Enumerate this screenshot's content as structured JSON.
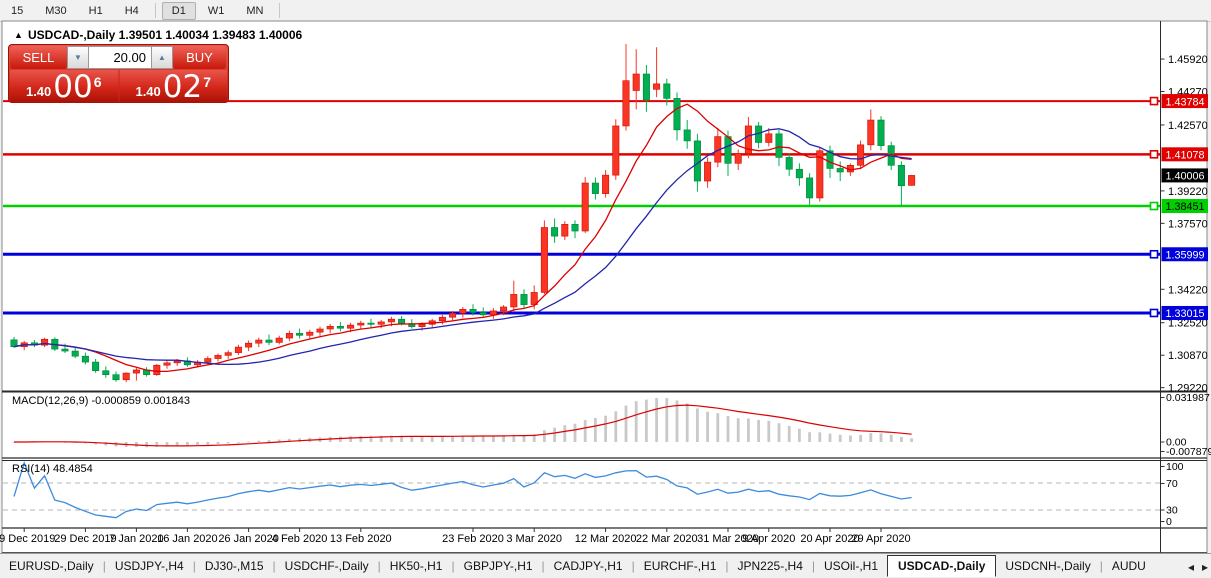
{
  "toolbar": {
    "timeframes": [
      "15",
      "M30",
      "H1",
      "H4",
      "D1",
      "W1",
      "MN"
    ],
    "active": "D1"
  },
  "chart": {
    "title_marker": "▲",
    "title": "USDCAD-,Daily  1.39501 1.40034 1.39483 1.40006"
  },
  "trade": {
    "sell_label": "SELL",
    "buy_label": "BUY",
    "volume": "20.00",
    "spin_down": "▼",
    "spin_up": "▲",
    "sell_price": {
      "prefix": "1.40",
      "big": "00",
      "sup": "6"
    },
    "buy_price": {
      "prefix": "1.40",
      "big": "02",
      "sup": "7"
    }
  },
  "chart_data": {
    "type": "candlestick",
    "symbol": "USDCAD-",
    "timeframe": "Daily",
    "price_axis": {
      "max": 1.4765,
      "min": 1.2905,
      "ticks": [
        1.4592,
        1.4427,
        1.4257,
        1.3922,
        1.3757,
        1.3422,
        1.3252,
        1.3087,
        1.2922
      ]
    },
    "x_axis": {
      "labels": [
        {
          "i": 1,
          "t": "19 Dec 2019"
        },
        {
          "i": 7,
          "t": "29 Dec 2019"
        },
        {
          "i": 12,
          "t": "7 Jan 2020"
        },
        {
          "i": 17,
          "t": "16 Jan 2020"
        },
        {
          "i": 23,
          "t": "26 Jan 2020"
        },
        {
          "i": 28,
          "t": "4 Feb 2020"
        },
        {
          "i": 34,
          "t": "13 Feb 2020"
        },
        {
          "i": 45,
          "t": "23 Feb 2020"
        },
        {
          "i": 51,
          "t": "3 Mar 2020"
        },
        {
          "i": 58,
          "t": "12 Mar 2020"
        },
        {
          "i": 64,
          "t": "22 Mar 2020"
        },
        {
          "i": 70,
          "t": "31 Mar 2020"
        },
        {
          "i": 74,
          "t": "9 Apr 2020"
        },
        {
          "i": 80,
          "t": "20 Apr 2020"
        },
        {
          "i": 85,
          "t": "29 Apr 2020"
        }
      ]
    },
    "candles": [
      [
        1.3165,
        1.318,
        1.3125,
        1.313
      ],
      [
        1.313,
        1.316,
        1.3112,
        1.315
      ],
      [
        1.315,
        1.3164,
        1.3128,
        1.3138
      ],
      [
        1.3138,
        1.3176,
        1.3128,
        1.3168
      ],
      [
        1.3168,
        1.3178,
        1.3108,
        1.3118
      ],
      [
        1.3118,
        1.3146,
        1.3098,
        1.3108
      ],
      [
        1.3108,
        1.313,
        1.3072,
        1.3082
      ],
      [
        1.3082,
        1.31,
        1.304,
        1.3052
      ],
      [
        1.3052,
        1.3068,
        1.2998,
        1.3008
      ],
      [
        1.3008,
        1.303,
        1.2972,
        1.2988
      ],
      [
        1.2988,
        1.3004,
        1.2952,
        1.2962
      ],
      [
        1.2962,
        1.3,
        1.295,
        1.2996
      ],
      [
        1.2996,
        1.3022,
        1.2958,
        1.3012
      ],
      [
        1.3012,
        1.3026,
        1.2978,
        1.2988
      ],
      [
        1.2988,
        1.3042,
        1.2982,
        1.3036
      ],
      [
        1.3036,
        1.306,
        1.3018,
        1.3048
      ],
      [
        1.3048,
        1.3068,
        1.3032,
        1.3058
      ],
      [
        1.3058,
        1.3076,
        1.3028,
        1.3038
      ],
      [
        1.3038,
        1.3062,
        1.3024,
        1.3052
      ],
      [
        1.3052,
        1.3082,
        1.304,
        1.307
      ],
      [
        1.307,
        1.3096,
        1.3054,
        1.3086
      ],
      [
        1.3086,
        1.3112,
        1.3068,
        1.31
      ],
      [
        1.31,
        1.314,
        1.3088,
        1.3128
      ],
      [
        1.3128,
        1.3162,
        1.3108,
        1.3148
      ],
      [
        1.3148,
        1.3176,
        1.3128,
        1.3164
      ],
      [
        1.3164,
        1.3192,
        1.3138,
        1.3152
      ],
      [
        1.3152,
        1.3186,
        1.3142,
        1.3174
      ],
      [
        1.3174,
        1.3212,
        1.3158,
        1.3198
      ],
      [
        1.3198,
        1.3222,
        1.3172,
        1.3188
      ],
      [
        1.3188,
        1.3216,
        1.3168,
        1.3204
      ],
      [
        1.3204,
        1.3232,
        1.3184,
        1.322
      ],
      [
        1.322,
        1.3246,
        1.3198,
        1.3234
      ],
      [
        1.3234,
        1.3256,
        1.3208,
        1.3224
      ],
      [
        1.3224,
        1.3252,
        1.3204,
        1.324
      ],
      [
        1.324,
        1.3262,
        1.3218,
        1.325
      ],
      [
        1.325,
        1.3272,
        1.3228,
        1.3244
      ],
      [
        1.3244,
        1.3266,
        1.3224,
        1.3256
      ],
      [
        1.3256,
        1.3282,
        1.3234,
        1.327
      ],
      [
        1.327,
        1.3286,
        1.3238,
        1.3248
      ],
      [
        1.3248,
        1.327,
        1.3222,
        1.3232
      ],
      [
        1.3232,
        1.3254,
        1.3212,
        1.3244
      ],
      [
        1.3244,
        1.3272,
        1.3228,
        1.3262
      ],
      [
        1.3262,
        1.3292,
        1.3244,
        1.328
      ],
      [
        1.328,
        1.3312,
        1.3258,
        1.33
      ],
      [
        1.33,
        1.3332,
        1.3278,
        1.332
      ],
      [
        1.332,
        1.3346,
        1.3288,
        1.3304
      ],
      [
        1.3304,
        1.333,
        1.3278,
        1.3292
      ],
      [
        1.3292,
        1.3326,
        1.3272,
        1.3312
      ],
      [
        1.3312,
        1.3342,
        1.329,
        1.3332
      ],
      [
        1.3332,
        1.3466,
        1.331,
        1.3396
      ],
      [
        1.3396,
        1.3422,
        1.3326,
        1.3344
      ],
      [
        1.3344,
        1.3442,
        1.332,
        1.3406
      ],
      [
        1.3406,
        1.3772,
        1.3398,
        1.3736
      ],
      [
        1.3736,
        1.3782,
        1.3658,
        1.3692
      ],
      [
        1.3692,
        1.3768,
        1.3672,
        1.3752
      ],
      [
        1.3752,
        1.3772,
        1.3682,
        1.3718
      ],
      [
        1.3718,
        1.3992,
        1.3708,
        1.3962
      ],
      [
        1.3962,
        1.399,
        1.3878,
        1.3908
      ],
      [
        1.3908,
        1.4028,
        1.3888,
        1.4002
      ],
      [
        1.4002,
        1.4286,
        1.3978,
        1.4252
      ],
      [
        1.4252,
        1.4668,
        1.4228,
        1.4482
      ],
      [
        1.4432,
        1.4642,
        1.4336,
        1.4516
      ],
      [
        1.4516,
        1.4562,
        1.4324,
        1.4384
      ],
      [
        1.4438,
        1.4652,
        1.4398,
        1.4466
      ],
      [
        1.4466,
        1.4492,
        1.4356,
        1.4392
      ],
      [
        1.4392,
        1.4422,
        1.4178,
        1.4232
      ],
      [
        1.4232,
        1.4282,
        1.4136,
        1.4176
      ],
      [
        1.4176,
        1.4212,
        1.3918,
        1.3972
      ],
      [
        1.3972,
        1.4092,
        1.3938,
        1.4068
      ],
      [
        1.4068,
        1.4242,
        1.4042,
        1.4198
      ],
      [
        1.4198,
        1.4228,
        1.3998,
        1.4062
      ],
      [
        1.4062,
        1.4132,
        1.4028,
        1.4112
      ],
      [
        1.4112,
        1.4298,
        1.4088,
        1.4252
      ],
      [
        1.4252,
        1.4272,
        1.4138,
        1.4168
      ],
      [
        1.4168,
        1.4242,
        1.4148,
        1.4212
      ],
      [
        1.4212,
        1.4232,
        1.4048,
        1.4092
      ],
      [
        1.4092,
        1.4112,
        1.3998,
        1.4032
      ],
      [
        1.4032,
        1.4062,
        1.3948,
        1.3988
      ],
      [
        1.3988,
        1.4012,
        1.3852,
        1.3886
      ],
      [
        1.3886,
        1.4142,
        1.3868,
        1.4126
      ],
      [
        1.4126,
        1.4152,
        1.3988,
        1.4036
      ],
      [
        1.4036,
        1.4072,
        1.3972,
        1.4018
      ],
      [
        1.4018,
        1.4062,
        1.3998,
        1.4052
      ],
      [
        1.4052,
        1.4178,
        1.4032,
        1.4156
      ],
      [
        1.4156,
        1.4336,
        1.4128,
        1.4282
      ],
      [
        1.4282,
        1.4302,
        1.4128,
        1.4152
      ],
      [
        1.4152,
        1.4172,
        1.4028,
        1.4052
      ],
      [
        1.4052,
        1.4072,
        1.3845,
        1.3948
      ],
      [
        1.395,
        1.4003,
        1.3948,
        1.40006
      ]
    ],
    "up_color": "#fb3424",
    "down_color": "#00b050",
    "hlines": [
      {
        "value": 1.43784,
        "label": "1.43784",
        "color": "#e10000",
        "width": 2,
        "fg": "#ffffff"
      },
      {
        "value": 1.41078,
        "label": "1.41078",
        "color": "#e10000",
        "width": 2.5,
        "fg": "#ffffff"
      },
      {
        "value": 1.38451,
        "label": "1.38451",
        "color": "#00d000",
        "width": 2.5,
        "fg": "#000000"
      },
      {
        "value": 1.35999,
        "label": "1.35999",
        "color": "#0000dd",
        "width": 3,
        "fg": "#ffffff"
      },
      {
        "value": 1.33015,
        "label": "1.33015",
        "color": "#0000dd",
        "width": 3,
        "fg": "#ffffff"
      }
    ],
    "current_price": {
      "value": 1.40006,
      "label": "1.40006",
      "bg": "#000000",
      "fg": "#ffffff"
    },
    "ma": {
      "fast_period": 8,
      "fast_color": "#dd0000",
      "slow_period": 17,
      "slow_color": "#2424ad"
    },
    "macd": {
      "label": "MACD(12,26,9) -0.000859 0.001843",
      "fast": 12,
      "slow": 26,
      "signal": 9,
      "axis_max_label": "0.031987",
      "axis_zero_label": "0.00",
      "axis_min_label": "-0.007879",
      "hist_color": "#c9c9c9",
      "signal_color": "#dd0000"
    },
    "rsi": {
      "label": "RSI(14) 48.4854",
      "period": 14,
      "line_color": "#3d8bdd",
      "levels": [
        "100",
        "70",
        "30",
        "0"
      ],
      "upper": 70,
      "lower": 30
    }
  },
  "tabs": {
    "items": [
      "EURUSD-,Daily",
      "USDJPY-,H4",
      "DJ30-,M15",
      "USDCHF-,Daily",
      "HK50-,H1",
      "GBPJPY-,H1",
      "CADJPY-,H1",
      "EURCHF-,H1",
      "JPN225-,H4",
      "USOil-,H1",
      "USDCAD-,Daily",
      "USDCNH-,Daily",
      "AUDU"
    ],
    "active": "USDCAD-,Daily",
    "arrow_left": "◂",
    "arrow_right": "▸"
  }
}
